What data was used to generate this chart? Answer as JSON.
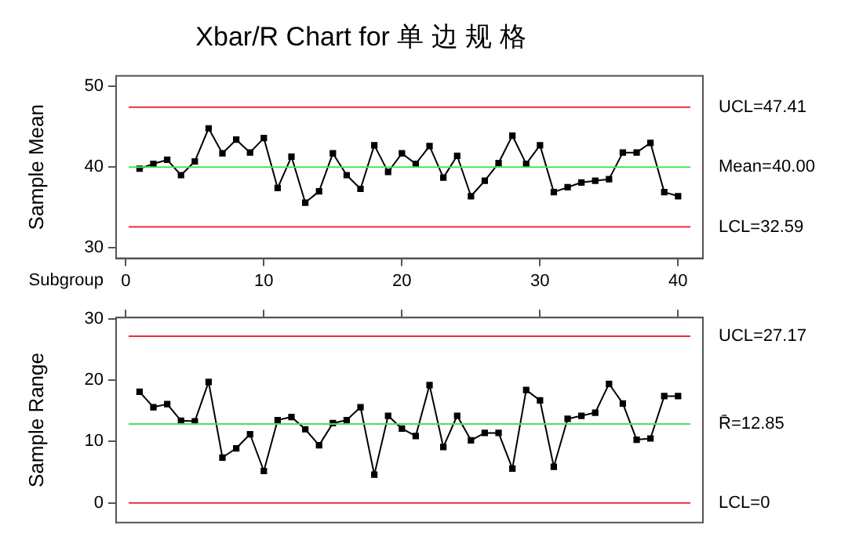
{
  "chart_data": [
    {
      "type": "line",
      "title": "Xbar/R Chart for 单 边 规 格",
      "xlabel": "Subgroup",
      "ylabel": "Sample Mean",
      "x": [
        1,
        2,
        3,
        4,
        5,
        6,
        7,
        8,
        9,
        10,
        11,
        12,
        13,
        14,
        15,
        16,
        17,
        18,
        19,
        20,
        21,
        22,
        23,
        24,
        25,
        26,
        27,
        28,
        29,
        30,
        31,
        32,
        33,
        34,
        35,
        36,
        37,
        38,
        39,
        40
      ],
      "series": [
        {
          "color": "#000000",
          "values": [
            39.8,
            40.4,
            40.9,
            39.0,
            40.7,
            44.8,
            41.7,
            43.4,
            41.8,
            43.6,
            37.4,
            41.3,
            35.6,
            37.0,
            41.7,
            39.0,
            37.3,
            42.7,
            39.4,
            41.7,
            40.4,
            42.6,
            38.7,
            41.4,
            36.4,
            38.3,
            40.5,
            43.9,
            40.4,
            42.7,
            36.9,
            37.5,
            38.1,
            38.3,
            38.5,
            41.8,
            41.8,
            43.0,
            36.9,
            36.4
          ]
        }
      ],
      "xlim": [
        -0.7,
        41.8
      ],
      "xticks": [
        0,
        10,
        20,
        30,
        40
      ],
      "ylim": [
        28.7,
        51.3
      ],
      "yticks": [
        30,
        40,
        50
      ],
      "grid": false,
      "legend": false,
      "marker": "square",
      "line_style": "solid",
      "ref_lines": [
        {
          "axis": "y",
          "value": 47.41,
          "label": "UCL=47.41",
          "color": "#e8303a"
        },
        {
          "axis": "y",
          "value": 40.0,
          "label": "Mean=40.00",
          "color": "#50e050"
        },
        {
          "axis": "y",
          "value": 32.59,
          "label": "LCL=32.59",
          "color": "#e8303a"
        }
      ]
    },
    {
      "type": "line",
      "ylabel": "Sample Range",
      "x": [
        1,
        2,
        3,
        4,
        5,
        6,
        7,
        8,
        9,
        10,
        11,
        12,
        13,
        14,
        15,
        16,
        17,
        18,
        19,
        20,
        21,
        22,
        23,
        24,
        25,
        26,
        27,
        28,
        29,
        30,
        31,
        32,
        33,
        34,
        35,
        36,
        37,
        38,
        39,
        40
      ],
      "series": [
        {
          "color": "#000000",
          "values": [
            18.1,
            15.6,
            16.1,
            13.4,
            13.3,
            19.7,
            7.4,
            8.9,
            11.2,
            5.2,
            13.5,
            14.0,
            12.0,
            9.4,
            13.0,
            13.5,
            15.6,
            4.6,
            14.2,
            12.1,
            10.9,
            19.2,
            9.1,
            14.2,
            10.2,
            11.4,
            11.4,
            5.6,
            18.4,
            16.7,
            5.9,
            13.7,
            14.2,
            14.7,
            19.4,
            16.2,
            10.3,
            10.5,
            17.4,
            17.4
          ]
        }
      ],
      "xlim": [
        -0.7,
        41.8
      ],
      "xticks": [
        {
          "value": 0,
          "label": null
        },
        {
          "value": 10,
          "label": null
        },
        {
          "value": 20,
          "label": null
        },
        {
          "value": 30,
          "label": null
        },
        {
          "value": 40,
          "label": null
        }
      ],
      "ylim": [
        -3.2,
        30.2
      ],
      "yticks": [
        0,
        10,
        20,
        30
      ],
      "tick_labels": "y",
      "grid": false,
      "legend": false,
      "marker": "square",
      "line_style": "solid",
      "ref_lines": [
        {
          "axis": "y",
          "value": 27.17,
          "label": "UCL=27.17",
          "color": "#e8303a"
        },
        {
          "axis": "y",
          "value": 12.85,
          "label": "R̄=12.85",
          "color": "#50e050"
        },
        {
          "axis": "y",
          "value": 0,
          "label": "LCL=0",
          "color": "#e8303a"
        }
      ]
    }
  ]
}
